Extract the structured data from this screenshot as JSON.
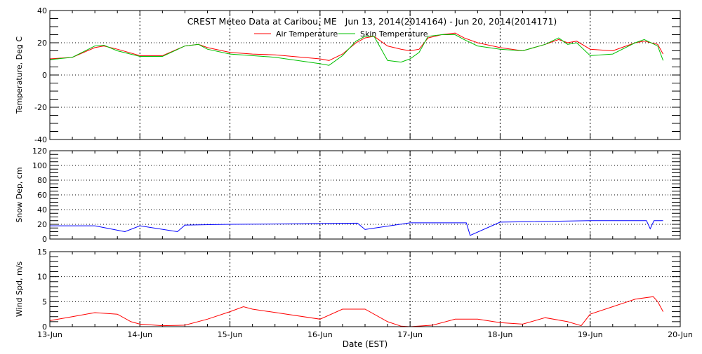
{
  "chart_data": [
    {
      "type": "line",
      "title": "CREST Meteo Data at Caribou, ME   Jun 13, 2014(2014164) - Jun 20, 2014(2014171)",
      "ylabel": "Temperature, Deg C",
      "ylim": [
        -40,
        40
      ],
      "yticks": [
        "40",
        "20",
        "0",
        "-20",
        "-40"
      ],
      "yminor": 5,
      "grid": true,
      "legend_placement": "top-center",
      "series": [
        {
          "name": "Air Temperature",
          "color": "#ff0000",
          "x": [
            "2014-06-13T00:00",
            "2014-06-13T06:00",
            "2014-06-13T12:00",
            "2014-06-13T14:24",
            "2014-06-13T18:00",
            "2014-06-14T00:00",
            "2014-06-14T06:00",
            "2014-06-14T12:00",
            "2014-06-14T15:36",
            "2014-06-14T18:00",
            "2014-06-15T00:00",
            "2014-06-15T06:00",
            "2014-06-15T12:00",
            "2014-06-16T00:00",
            "2014-06-16T02:24",
            "2014-06-16T06:00",
            "2014-06-16T09:36",
            "2014-06-16T12:00",
            "2014-06-16T14:24",
            "2014-06-16T18:00",
            "2014-06-16T21:36",
            "2014-06-17T00:00",
            "2014-06-17T02:24",
            "2014-06-17T04:48",
            "2014-06-17T08:24",
            "2014-06-17T12:00",
            "2014-06-17T14:24",
            "2014-06-17T18:00",
            "2014-06-18T00:00",
            "2014-06-18T06:00",
            "2014-06-18T12:00",
            "2014-06-18T15:36",
            "2014-06-18T18:00",
            "2014-06-18T20:24",
            "2014-06-19T00:00",
            "2014-06-19T06:00",
            "2014-06-19T12:00",
            "2014-06-19T14:24",
            "2014-06-19T18:00",
            "2014-06-19T19:26"
          ],
          "y": [
            10,
            11,
            17,
            18,
            16,
            12,
            12,
            18,
            19,
            17,
            14,
            13,
            12.5,
            10,
            9,
            13,
            20,
            23,
            24,
            18,
            16,
            15,
            16,
            23,
            25,
            26,
            23,
            20,
            17,
            15,
            19,
            22,
            20,
            21,
            16,
            15,
            20,
            21,
            19,
            13
          ]
        },
        {
          "name": "Skin Temperature",
          "color": "#00c000",
          "x": [
            "2014-06-13T00:00",
            "2014-06-13T06:00",
            "2014-06-13T12:00",
            "2014-06-13T14:24",
            "2014-06-13T18:00",
            "2014-06-14T00:00",
            "2014-06-14T06:00",
            "2014-06-14T12:00",
            "2014-06-14T15:36",
            "2014-06-14T18:00",
            "2014-06-15T00:00",
            "2014-06-15T06:00",
            "2014-06-15T12:00",
            "2014-06-16T00:00",
            "2014-06-16T02:24",
            "2014-06-16T06:00",
            "2014-06-16T09:36",
            "2014-06-16T12:00",
            "2014-06-16T14:24",
            "2014-06-16T18:00",
            "2014-06-16T21:36",
            "2014-06-17T00:00",
            "2014-06-17T02:24",
            "2014-06-17T04:48",
            "2014-06-17T08:24",
            "2014-06-17T12:00",
            "2014-06-17T14:24",
            "2014-06-17T18:00",
            "2014-06-18T00:00",
            "2014-06-18T06:00",
            "2014-06-18T12:00",
            "2014-06-18T15:36",
            "2014-06-18T18:00",
            "2014-06-18T20:24",
            "2014-06-19T00:00",
            "2014-06-19T06:00",
            "2014-06-19T12:00",
            "2014-06-19T14:24",
            "2014-06-19T18:00",
            "2014-06-19T19:26"
          ],
          "y": [
            9.5,
            11,
            18,
            18.5,
            15,
            11.5,
            11.5,
            18,
            19,
            16,
            13,
            12,
            11,
            7,
            6,
            12,
            21,
            24,
            24,
            9,
            8,
            10,
            14,
            24,
            25,
            25,
            22,
            18,
            16,
            15,
            19,
            23,
            19,
            20,
            12,
            13,
            20,
            22,
            18,
            9
          ]
        }
      ]
    },
    {
      "type": "line",
      "ylabel": "Snow Dep, cm",
      "ylim": [
        0,
        120
      ],
      "yticks": [
        "120",
        "100",
        "80",
        "60",
        "40",
        "20",
        "0"
      ],
      "yminor": 5,
      "grid": true,
      "series": [
        {
          "color": "#0000ff",
          "x": [
            "2014-06-13T00:00",
            "2014-06-13T12:00",
            "2014-06-13T20:00",
            "2014-06-14T00:00",
            "2014-06-14T10:00",
            "2014-06-14T12:00",
            "2014-06-15T00:00",
            "2014-06-15T12:00",
            "2014-06-16T00:00",
            "2014-06-16T10:00",
            "2014-06-16T12:00",
            "2014-06-17T00:00",
            "2014-06-17T15:00",
            "2014-06-17T16:00",
            "2014-06-18T00:00",
            "2014-06-19T00:00",
            "2014-06-19T15:00",
            "2014-06-19T16:00",
            "2014-06-19T17:00",
            "2014-06-19T19:26"
          ],
          "y": [
            18,
            18,
            10,
            18,
            10,
            19,
            20,
            20.5,
            21,
            21.5,
            13,
            22,
            22,
            5,
            23,
            25,
            25,
            14,
            25,
            25
          ]
        }
      ]
    },
    {
      "type": "line",
      "ylabel": "Wind Spd, m/s",
      "xlabel": "Date (EST)",
      "ylim": [
        0,
        15
      ],
      "yticks": [
        "15",
        "10",
        "5",
        "0"
      ],
      "yminor": 1,
      "grid": true,
      "xlim": [
        "2014-06-13T00:00",
        "2014-06-20T00:00"
      ],
      "xticks": [
        "13-Jun",
        "14-Jun",
        "15-Jun",
        "16-Jun",
        "17-Jun",
        "18-Jun",
        "19-Jun",
        "20-Jun"
      ],
      "series": [
        {
          "color": "#ff0000",
          "x": [
            "2014-06-13T00:00",
            "2014-06-13T06:00",
            "2014-06-13T12:00",
            "2014-06-13T18:00",
            "2014-06-13T21:36",
            "2014-06-14T00:00",
            "2014-06-14T06:00",
            "2014-06-14T12:00",
            "2014-06-14T18:00",
            "2014-06-15T00:00",
            "2014-06-15T03:36",
            "2014-06-15T06:00",
            "2014-06-16T00:00",
            "2014-06-16T06:00",
            "2014-06-16T12:00",
            "2014-06-16T18:00",
            "2014-06-16T21:36",
            "2014-06-17T00:00",
            "2014-06-17T06:00",
            "2014-06-17T12:00",
            "2014-06-17T18:00",
            "2014-06-18T00:00",
            "2014-06-18T06:00",
            "2014-06-18T12:00",
            "2014-06-18T18:00",
            "2014-06-18T21:36",
            "2014-06-19T00:00",
            "2014-06-19T06:00",
            "2014-06-19T12:00",
            "2014-06-19T16:48",
            "2014-06-19T18:00",
            "2014-06-19T19:26"
          ],
          "y": [
            1.2,
            2,
            2.8,
            2.5,
            1,
            0.5,
            0.2,
            0.3,
            1.5,
            3,
            4,
            3.5,
            1.5,
            3.5,
            3.5,
            1,
            0.1,
            0,
            0.3,
            1.5,
            1.5,
            0.8,
            0.5,
            1.8,
            1,
            0.2,
            2.5,
            4,
            5.5,
            6,
            5,
            3
          ]
        }
      ]
    }
  ]
}
